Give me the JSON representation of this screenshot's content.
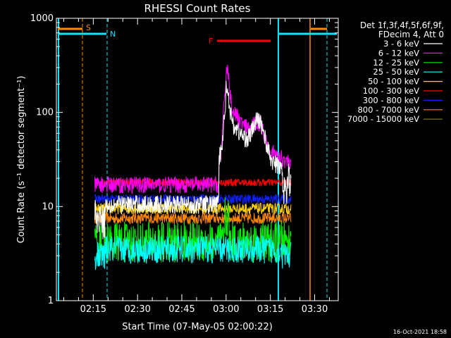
{
  "chart_data": {
    "type": "line",
    "title": "RHESSI Count Rates",
    "xlabel": "Start Time (07-May-05 02:00:22)",
    "ylabel": "Count Rate (s⁻¹ detector segment⁻¹)",
    "yscale": "log",
    "ylim": [
      1,
      1000
    ],
    "xlim_minutes": [
      2.5,
      98
    ],
    "x_ticks": [
      {
        "label": "02:15",
        "min": 15
      },
      {
        "label": "02:30",
        "min": 30
      },
      {
        "label": "02:45",
        "min": 45
      },
      {
        "label": "03:00",
        "min": 60
      },
      {
        "label": "03:15",
        "min": 75
      },
      {
        "label": "03:30",
        "min": 90
      }
    ],
    "y_ticks": [
      {
        "label": "1",
        "v": 1
      },
      {
        "label": "10",
        "v": 10
      },
      {
        "label": "100",
        "v": 100
      },
      {
        "label": "1000",
        "v": 1000
      }
    ],
    "legend_header": [
      "Det 1f,3f,4f,5f,6f,9f,",
      "FDecim 4, Att 0"
    ],
    "series": [
      {
        "name": "3 - 6 keV",
        "color": "#ffffff",
        "level": 10.5,
        "flare_peak": 190,
        "noise": 0.1
      },
      {
        "name": "6 - 12 keV",
        "color": "#ff00ff",
        "level": 17,
        "flare_peak": 330,
        "noise": 0.09
      },
      {
        "name": "12 - 25 keV",
        "color": "#00ee00",
        "level": 4.2,
        "flare_peak": 5.5,
        "noise": 0.22
      },
      {
        "name": "25 - 50 keV",
        "color": "#00ffff",
        "level": 3.5,
        "flare_peak": 3.6,
        "noise": 0.15
      },
      {
        "name": "50 - 100 keV",
        "color": "#ffd000",
        "level": 9.5,
        "flare_peak": 9.5,
        "noise": 0.06
      },
      {
        "name": "100 - 300 keV",
        "color": "#ff0000",
        "level": 18,
        "flare_peak": 18,
        "noise": 0.04
      },
      {
        "name": "300 - 800 keV",
        "color": "#1020ff",
        "level": 12,
        "flare_peak": 12,
        "noise": 0.05
      },
      {
        "name": "800 - 7000 keV",
        "color": "#ff8800",
        "level": 7.5,
        "flare_peak": 7.5,
        "noise": 0.06
      },
      {
        "name": "7000 - 15000 keV",
        "color": "#808000",
        "level": 0,
        "flare_peak": 0,
        "noise": 0
      }
    ],
    "annotations": [
      {
        "label": "S",
        "color": "#ff8c00"
      },
      {
        "label": "N",
        "color": "#00e5ff"
      },
      {
        "label": "F",
        "color": "#ff0000"
      }
    ],
    "grid": false,
    "legend_placement": "right"
  },
  "footer": "16-Oct-2021 18:58"
}
